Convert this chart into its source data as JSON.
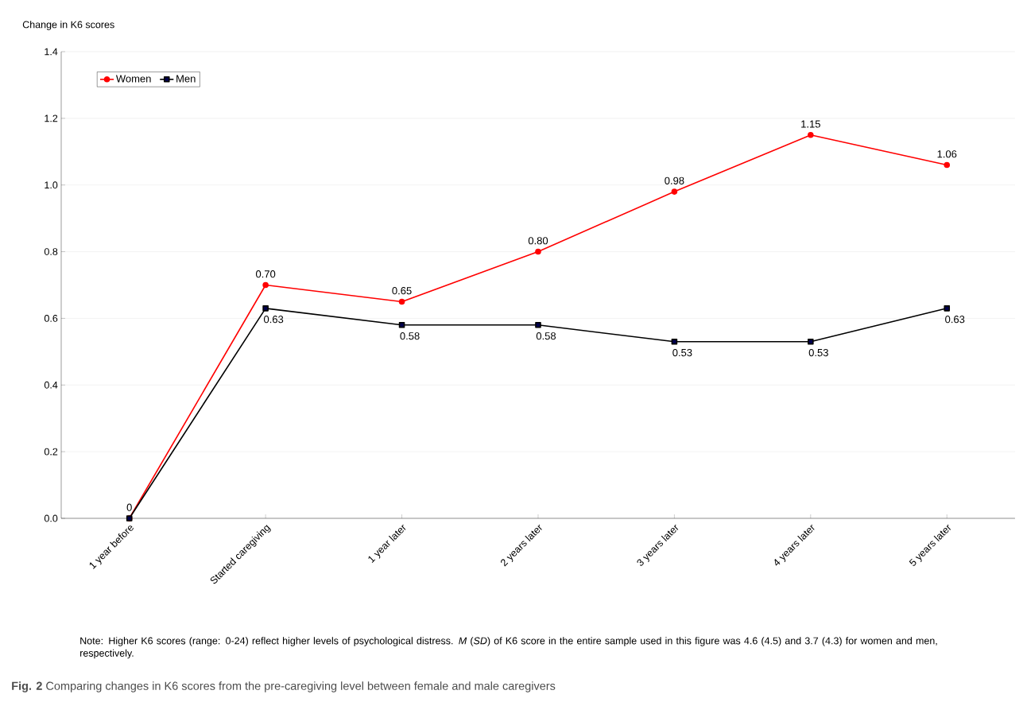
{
  "chart_data": {
    "type": "line",
    "ylabel": "Change in K6 scores",
    "categories": [
      "1 year before",
      "Started caregiving",
      "1 year later",
      "2 years later",
      "3 years later",
      "4 years later",
      "5 years later"
    ],
    "series": [
      {
        "name": "Women",
        "color": "#ff0000",
        "marker": "circle",
        "values": [
          0,
          0.7,
          0.65,
          0.8,
          0.98,
          1.15,
          1.06
        ],
        "value_labels": [
          "0",
          "0.70",
          "0.65",
          "0.80",
          "0.98",
          "1.15",
          "1.06"
        ]
      },
      {
        "name": "Men",
        "color": "#000000",
        "marker": "square",
        "values": [
          0,
          0.63,
          0.58,
          0.58,
          0.53,
          0.53,
          0.63
        ],
        "value_labels": [
          null,
          "0.63",
          "0.58",
          "0.58",
          "0.53",
          "0.53",
          "0.63"
        ]
      }
    ],
    "ylim": [
      0,
      1.4
    ],
    "yticks": [
      {
        "value": 0,
        "label": "0.0"
      },
      {
        "value": 0.2,
        "label": "0.2"
      },
      {
        "value": 0.4,
        "label": "0.4"
      },
      {
        "value": 0.6,
        "label": "0.6"
      },
      {
        "value": 0.8,
        "label": "0.8"
      },
      {
        "value": 1.0,
        "label": "1.0"
      },
      {
        "value": 1.2,
        "label": "1.2"
      },
      {
        "value": 1.4,
        "label": "1.4"
      }
    ],
    "grid": "y",
    "legend": "top left",
    "annotations": [
      "Note: Higher K6 scores (range: 0-24) reflect higher levels of psychological distress. *M* (*SD*) of K6 score in the entire sample used in this figure was 4.6 (4.5) and 3.7 (4.3) for women and men, respectively.",
      "**Fig. 2** Comparing changes in K6 scores from the pre-caregiving level between female and male caregivers"
    ]
  }
}
